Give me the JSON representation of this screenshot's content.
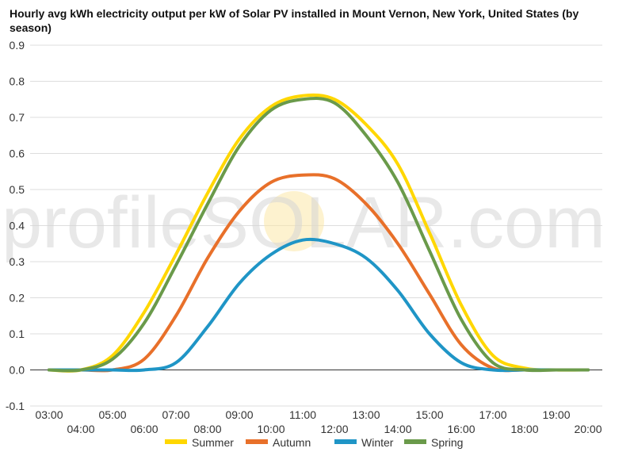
{
  "chart_data": {
    "type": "line",
    "title": "Hourly avg kWh electricity output per kW of Solar PV installed in Mount Vernon, New York, United States (by season)",
    "xlabel": "",
    "ylabel": "",
    "ylim": [
      -0.1,
      0.9
    ],
    "yticks": [
      "-0.1",
      "0.0",
      "0.1",
      "0.2",
      "0.3",
      "0.4",
      "0.5",
      "0.6",
      "0.7",
      "0.8",
      "0.9"
    ],
    "x": [
      "03:00",
      "04:00",
      "05:00",
      "06:00",
      "07:00",
      "08:00",
      "09:00",
      "10:00",
      "11:00",
      "12:00",
      "13:00",
      "14:00",
      "15:00",
      "16:00",
      "17:00",
      "18:00",
      "19:00",
      "20:00"
    ],
    "grid": true,
    "legend": "bottom",
    "series": [
      {
        "name": "Summer",
        "color": "#ffd700",
        "values": [
          0.0,
          0.0,
          0.04,
          0.16,
          0.32,
          0.49,
          0.64,
          0.73,
          0.76,
          0.75,
          0.68,
          0.57,
          0.38,
          0.18,
          0.04,
          0.005,
          0.0,
          0.0
        ]
      },
      {
        "name": "Autumn",
        "color": "#e8702a",
        "values": [
          0.0,
          0.0,
          0.0,
          0.03,
          0.15,
          0.31,
          0.44,
          0.52,
          0.54,
          0.53,
          0.46,
          0.35,
          0.21,
          0.07,
          0.005,
          0.0,
          0.0,
          0.0
        ]
      },
      {
        "name": "Winter",
        "color": "#1f95c6",
        "values": [
          0.0,
          0.0,
          0.0,
          0.0,
          0.02,
          0.12,
          0.24,
          0.32,
          0.36,
          0.35,
          0.31,
          0.22,
          0.1,
          0.02,
          0.0,
          0.0,
          0.0,
          0.0
        ]
      },
      {
        "name": "Spring",
        "color": "#6a9a4a",
        "values": [
          0.0,
          0.0,
          0.03,
          0.13,
          0.29,
          0.46,
          0.62,
          0.72,
          0.75,
          0.74,
          0.65,
          0.52,
          0.33,
          0.14,
          0.02,
          0.0,
          0.0,
          0.0
        ]
      }
    ]
  },
  "watermark": "profileSOLAR.com"
}
